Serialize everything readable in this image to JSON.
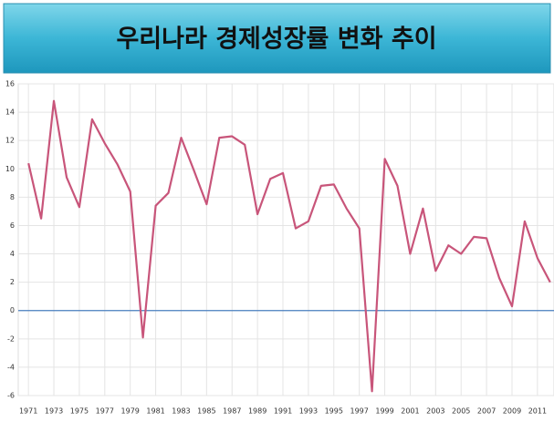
{
  "chart_data": {
    "type": "line",
    "title": "우리나라 경제성장률 변화 추이",
    "x": [
      1971,
      1972,
      1973,
      1974,
      1975,
      1976,
      1977,
      1978,
      1979,
      1980,
      1981,
      1982,
      1983,
      1984,
      1985,
      1986,
      1987,
      1988,
      1989,
      1990,
      1991,
      1992,
      1993,
      1994,
      1995,
      1996,
      1997,
      1998,
      1999,
      2000,
      2001,
      2002,
      2003,
      2004,
      2005,
      2006,
      2007,
      2008,
      2009,
      2010,
      2011,
      2012
    ],
    "series": [
      {
        "color": "#c8557a",
        "values": [
          10.4,
          6.5,
          14.8,
          9.4,
          7.3,
          13.5,
          11.8,
          10.3,
          8.4,
          -1.9,
          7.4,
          8.3,
          12.2,
          9.9,
          7.5,
          12.2,
          12.3,
          11.7,
          6.8,
          9.3,
          9.7,
          5.8,
          6.3,
          8.8,
          8.9,
          7.2,
          5.8,
          -5.7,
          10.7,
          8.8,
          4.0,
          7.2,
          2.8,
          4.6,
          4.0,
          5.2,
          5.1,
          2.3,
          0.3,
          6.3,
          3.7,
          2.0
        ]
      }
    ],
    "xlim": [
      1970.2,
      2012.3
    ],
    "xticks": [
      1971,
      1973,
      1975,
      1977,
      1979,
      1981,
      1983,
      1985,
      1987,
      1989,
      1991,
      1993,
      1995,
      1997,
      1999,
      2001,
      2003,
      2005,
      2007,
      2009,
      2011
    ],
    "ylim": [
      -6,
      16
    ],
    "yticks": [
      -6,
      -4,
      -2,
      0,
      2,
      4,
      6,
      8,
      10,
      12,
      14,
      16
    ],
    "grid": true,
    "reference_line": {
      "value": 0,
      "color": "#4a7fc0"
    }
  }
}
